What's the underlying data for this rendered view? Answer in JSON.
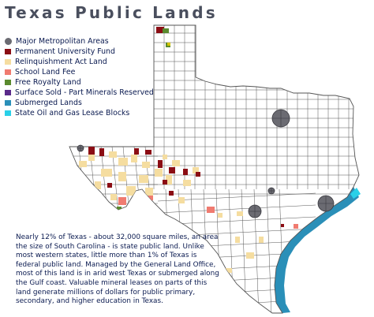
{
  "title": "Texas Public Lands",
  "legend": [
    {
      "label": "Major Metropolitan Areas",
      "color": "#6b6b72",
      "shape": "circle"
    },
    {
      "label": "Permanent University Fund",
      "color": "#8b0d14",
      "shape": "square"
    },
    {
      "label": "Relinquishment Act Land",
      "color": "#f5dda0",
      "shape": "square"
    },
    {
      "label": "School Land Fee",
      "color": "#f07b70",
      "shape": "square"
    },
    {
      "label": "Free Royalty Land",
      "color": "#5a8a2e",
      "shape": "square"
    },
    {
      "label": "Surface Sold - Part Minerals Reserved",
      "color": "#5a2a8a",
      "shape": "square"
    },
    {
      "label": "Submerged Lands",
      "color": "#2a8fb8",
      "shape": "square"
    },
    {
      "label": "State Oil and Gas Lease Blocks",
      "color": "#29d0e8",
      "shape": "square"
    }
  ],
  "description": "Nearly 12% of Texas - about 32,000 square miles, an area the size of South Carolina - is state public land. Unlike most western states, little more than 1% of Texas is federal public land. Managed by the General Land Office, most of this land is in arid west Texas or submerged along the Gulf coast. Valuable mineral leases on parts of this land generate millions of dollars for public primary, secondary, and higher education in Texas.",
  "colors": {
    "county_line": "#555555",
    "state_fill": "#ffffff",
    "title_color": "#4a4f5e",
    "text_color": "#0a1a50"
  }
}
